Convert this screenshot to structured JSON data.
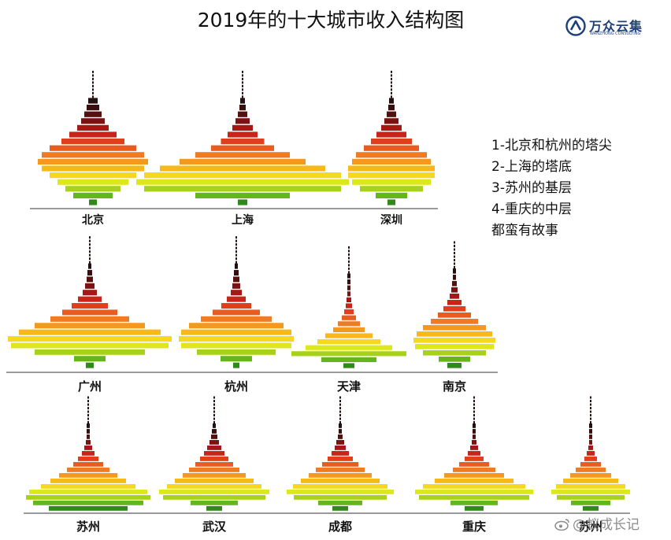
{
  "title": "2019年的十大城市收入结构图",
  "logo": {
    "name": "万众云集",
    "sub": "WANZHONG CONSULTING",
    "icon": "wanzhong-logo-icon",
    "color": "#1f3f7a"
  },
  "notes": [
    "1-北京和杭州的塔尖",
    "2-上海的塔底",
    "3-苏州的基层",
    "4-重庆的中层",
    "都蛮有故事"
  ],
  "watermark": {
    "icon": "weibo-icon",
    "text": "@蚁成长记"
  },
  "chart_data": {
    "type": "bar",
    "description_note": "",
    "level_colors": [
      "#2e8b1a",
      "#65b51c",
      "#a8d21a",
      "#dce81c",
      "#f6d81e",
      "#f7b81c",
      "#f39820",
      "#ef7c22",
      "#e85c20",
      "#e23e1c",
      "#c8241a",
      "#a51816",
      "#7a1212",
      "#551010",
      "#3a0e0e",
      "#251010"
    ],
    "cities": [
      {
        "name": "北京",
        "widths": [
          10,
          50,
          70,
          90,
          110,
          130,
          140,
          130,
          110,
          80,
          60,
          40,
          30,
          22,
          16,
          12
        ]
      },
      {
        "name": "上海",
        "widths": [
          12,
          120,
          250,
          270,
          250,
          210,
          160,
          120,
          80,
          55,
          38,
          26,
          18,
          12,
          8,
          6
        ]
      },
      {
        "name": "深圳",
        "widths": [
          10,
          40,
          80,
          100,
          110,
          110,
          100,
          90,
          70,
          52,
          38,
          26,
          18,
          12,
          8,
          6
        ]
      },
      {
        "name": "广州",
        "widths": [
          10,
          40,
          140,
          200,
          208,
          180,
          140,
          100,
          70,
          46,
          30,
          18,
          12,
          8,
          6,
          4
        ]
      },
      {
        "name": "杭州",
        "widths": [
          8,
          40,
          100,
          140,
          146,
          140,
          120,
          90,
          60,
          38,
          24,
          14,
          10,
          8,
          6,
          4
        ]
      },
      {
        "name": "天津",
        "widths": [
          14,
          70,
          146,
          110,
          80,
          60,
          40,
          28,
          18,
          12,
          8,
          6,
          4,
          4,
          4,
          4
        ]
      },
      {
        "name": "南京",
        "widths": [
          18,
          40,
          80,
          100,
          104,
          96,
          80,
          60,
          42,
          28,
          18,
          12,
          8,
          6,
          4,
          4
        ]
      },
      {
        "name": "苏州",
        "widths": [
          100,
          140,
          158,
          150,
          120,
          96,
          74,
          54,
          38,
          26,
          16,
          10,
          6,
          4,
          4,
          4
        ]
      },
      {
        "name": "武汉",
        "widths": [
          20,
          60,
          130,
          140,
          120,
          100,
          80,
          64,
          48,
          36,
          26,
          18,
          12,
          8,
          6,
          4
        ]
      },
      {
        "name": "成都",
        "widths": [
          20,
          56,
          118,
          136,
          120,
          100,
          80,
          62,
          46,
          32,
          22,
          14,
          10,
          6,
          4,
          4
        ]
      },
      {
        "name": "重庆",
        "widths": [
          24,
          60,
          140,
          150,
          130,
          100,
          76,
          54,
          38,
          24,
          16,
          10,
          6,
          4,
          4,
          4
        ]
      },
      {
        "name": "苏州",
        "widths": [
          20,
          50,
          86,
          100,
          88,
          70,
          52,
          38,
          26,
          16,
          10,
          6,
          4,
          4,
          4,
          4
        ]
      }
    ]
  }
}
